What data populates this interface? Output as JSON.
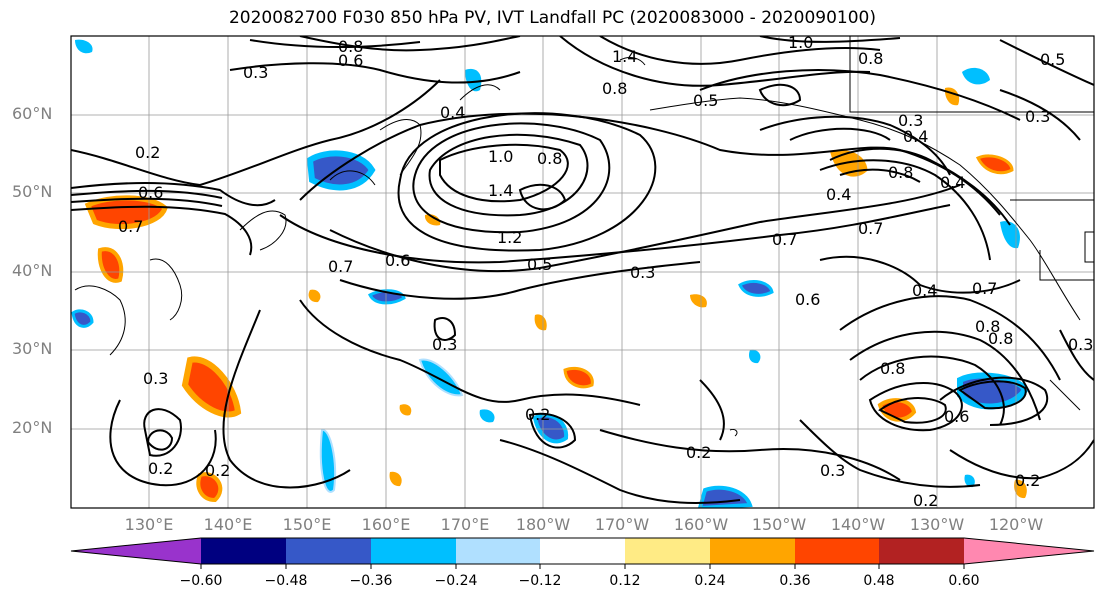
{
  "title": "2020082700 F030 850 hPa PV, IVT Landfall PC (2020083000 - 2020090100)",
  "lat_labels": [
    "60°N",
    "50°N",
    "40°N",
    "30°N",
    "20°N"
  ],
  "lon_labels": [
    "130°E",
    "140°E",
    "150°E",
    "160°E",
    "170°E",
    "180°W",
    "170°W",
    "160°W",
    "150°W",
    "140°W",
    "130°W",
    "120°W"
  ],
  "contour_labels": [
    "0.8",
    "0.6",
    "1.4",
    "1.0",
    "0.8",
    "0.5",
    "0.3",
    "0.8",
    "0.5",
    "0.4",
    "0.3",
    "0.3",
    "0.4",
    "0.2",
    "1.0",
    "0.8",
    "1.4",
    "1.2",
    "0.6",
    "0.7",
    "0.5",
    "0.7",
    "0.3",
    "0.6",
    "0.7",
    "0.6",
    "0.7",
    "0.4",
    "0.8",
    "0.8",
    "0.4",
    "0.4",
    "0.8",
    "0.8",
    "0.3",
    "0.2",
    "0.6",
    "0.3",
    "0.2",
    "0.2",
    "0.3",
    "0.2",
    "0.2",
    "0.2",
    "0.7",
    "0.3"
  ],
  "colorbar": {
    "colors": [
      "#9933cc",
      "#000080",
      "#3658c8",
      "#00bfff",
      "#b0e0ff",
      "#ffffff",
      "#ffeb85",
      "#ffa500",
      "#ff4500",
      "#b22222",
      "#ff88b0"
    ],
    "tick_labels": [
      "−0.60",
      "−0.48",
      "−0.36",
      "−0.24",
      "−0.12",
      "0.12",
      "0.24",
      "0.36",
      "0.48",
      "0.60"
    ]
  },
  "style": {
    "contour_color": "#000000",
    "grid_color": "#999999",
    "coast_color": "#000000"
  }
}
